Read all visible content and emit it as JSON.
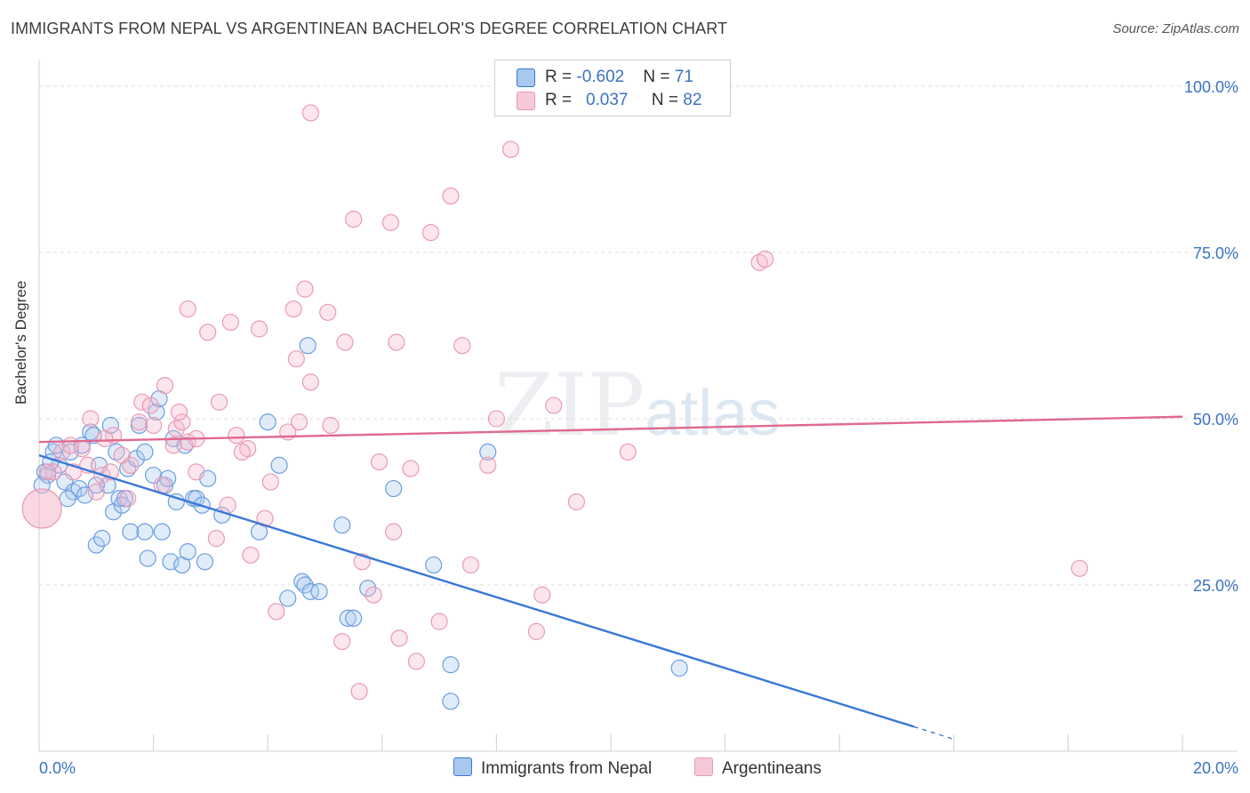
{
  "title": "IMMIGRANTS FROM NEPAL VS ARGENTINEAN BACHELOR'S DEGREE CORRELATION CHART",
  "source": "Source: ZipAtlas.com",
  "watermark": {
    "zip": "ZIP",
    "atlas": "atlas"
  },
  "legend": {
    "rows": [
      {
        "r_label": "R = ",
        "r_value": "-0.602",
        "n_label": "N = ",
        "n_value": "71",
        "color": "#a9c8ef"
      },
      {
        "r_label": "R = ",
        "r_value": "0.037",
        "n_label": "N = ",
        "n_value": "82",
        "color": "#f6b8cb"
      }
    ]
  },
  "bottom_legend": [
    "Immigrants from Nepal",
    "Argentineans"
  ],
  "chart_data": {
    "type": "scatter",
    "title": "IMMIGRANTS FROM NEPAL VS ARGENTINEAN BACHELOR'S DEGREE CORRELATION CHART",
    "xlabel": "",
    "ylabel": "Bachelor's Degree",
    "xlim": [
      0,
      20
    ],
    "ylim": [
      0,
      105
    ],
    "x_tick_labels": [
      "0.0%",
      "20.0%"
    ],
    "y_ticks": [
      25,
      50,
      75,
      100
    ],
    "y_tick_labels": [
      "25.0%",
      "50.0%",
      "75.0%",
      "100.0%"
    ],
    "grid": true,
    "series": [
      {
        "name": "Immigrants from Nepal",
        "color": "#3a78d6",
        "fill": "#a9c8ef",
        "trend": {
          "x": [
            0,
            15.3
          ],
          "y": [
            44.5,
            3.7
          ],
          "dashed_to": [
            16.0,
            1.8
          ]
        },
        "points": [
          [
            0.1,
            42
          ],
          [
            0.15,
            41.5
          ],
          [
            0.25,
            45
          ],
          [
            0.3,
            46
          ],
          [
            0.35,
            43
          ],
          [
            0.45,
            40.5
          ],
          [
            0.55,
            45
          ],
          [
            0.6,
            39
          ],
          [
            0.7,
            39.5
          ],
          [
            0.75,
            46
          ],
          [
            0.8,
            38.5
          ],
          [
            0.9,
            48
          ],
          [
            0.95,
            47.5
          ],
          [
            1.0,
            31
          ],
          [
            1.05,
            43
          ],
          [
            1.1,
            32
          ],
          [
            1.2,
            40
          ],
          [
            1.25,
            49
          ],
          [
            1.3,
            36
          ],
          [
            1.35,
            45
          ],
          [
            1.4,
            38
          ],
          [
            1.45,
            37
          ],
          [
            1.5,
            38
          ],
          [
            1.55,
            42.5
          ],
          [
            1.6,
            33
          ],
          [
            1.7,
            44
          ],
          [
            1.75,
            49
          ],
          [
            1.85,
            45
          ],
          [
            1.85,
            33
          ],
          [
            1.9,
            29
          ],
          [
            2.0,
            41.5
          ],
          [
            2.05,
            51
          ],
          [
            2.1,
            53
          ],
          [
            2.15,
            33
          ],
          [
            2.2,
            40
          ],
          [
            2.25,
            41
          ],
          [
            2.3,
            28.5
          ],
          [
            2.35,
            47
          ],
          [
            2.4,
            37.5
          ],
          [
            2.5,
            28
          ],
          [
            2.55,
            46
          ],
          [
            2.6,
            30
          ],
          [
            2.7,
            38
          ],
          [
            2.75,
            38
          ],
          [
            2.85,
            37
          ],
          [
            2.9,
            28.5
          ],
          [
            2.95,
            41
          ],
          [
            3.2,
            35.5
          ],
          [
            3.85,
            33
          ],
          [
            4.0,
            49.5
          ],
          [
            4.2,
            43
          ],
          [
            4.35,
            23
          ],
          [
            4.6,
            25.5
          ],
          [
            4.65,
            25
          ],
          [
            4.7,
            61
          ],
          [
            4.75,
            24
          ],
          [
            4.9,
            24
          ],
          [
            5.3,
            34
          ],
          [
            5.4,
            20
          ],
          [
            5.5,
            20
          ],
          [
            5.75,
            24.5
          ],
          [
            6.2,
            39.5
          ],
          [
            6.9,
            28
          ],
          [
            7.2,
            13
          ],
          [
            7.2,
            7.5
          ],
          [
            7.85,
            45
          ],
          [
            11.2,
            12.5
          ],
          [
            0.05,
            40
          ],
          [
            0.2,
            43.5
          ],
          [
            0.5,
            38
          ],
          [
            1.0,
            40
          ]
        ]
      },
      {
        "name": "Argentineans",
        "color": "#e0688f",
        "fill": "#f6b8cb",
        "trend": {
          "x": [
            0,
            20
          ],
          "y": [
            46.5,
            50.3
          ]
        },
        "points": [
          [
            0.05,
            36.5
          ],
          [
            0.25,
            42
          ],
          [
            0.4,
            45
          ],
          [
            0.6,
            42
          ],
          [
            0.75,
            45.5
          ],
          [
            0.9,
            50
          ],
          [
            1.0,
            39
          ],
          [
            1.1,
            41.5
          ],
          [
            1.25,
            42
          ],
          [
            1.3,
            47.5
          ],
          [
            1.45,
            44.5
          ],
          [
            1.6,
            43
          ],
          [
            1.75,
            49.5
          ],
          [
            1.8,
            52.5
          ],
          [
            1.95,
            52
          ],
          [
            2.0,
            49
          ],
          [
            2.15,
            40
          ],
          [
            2.2,
            55
          ],
          [
            2.4,
            48.5
          ],
          [
            2.5,
            49.5
          ],
          [
            2.45,
            51
          ],
          [
            2.6,
            46.5
          ],
          [
            2.75,
            47
          ],
          [
            2.75,
            42
          ],
          [
            2.6,
            66.5
          ],
          [
            2.95,
            63
          ],
          [
            3.15,
            52.5
          ],
          [
            3.1,
            32
          ],
          [
            3.3,
            37
          ],
          [
            3.35,
            64.5
          ],
          [
            3.45,
            47.5
          ],
          [
            3.65,
            45.5
          ],
          [
            3.7,
            29.5
          ],
          [
            3.85,
            63.5
          ],
          [
            3.95,
            35
          ],
          [
            4.05,
            40.5
          ],
          [
            4.15,
            21
          ],
          [
            4.35,
            48
          ],
          [
            4.45,
            66.5
          ],
          [
            4.5,
            59
          ],
          [
            4.55,
            49.5
          ],
          [
            4.65,
            69.5
          ],
          [
            4.75,
            55.5
          ],
          [
            4.75,
            96
          ],
          [
            5.05,
            66
          ],
          [
            5.1,
            49
          ],
          [
            5.3,
            16.5
          ],
          [
            5.35,
            61.5
          ],
          [
            5.5,
            80
          ],
          [
            5.6,
            9
          ],
          [
            5.65,
            28.5
          ],
          [
            5.85,
            23.5
          ],
          [
            5.95,
            43.5
          ],
          [
            6.15,
            79.5
          ],
          [
            6.2,
            33
          ],
          [
            6.25,
            61.5
          ],
          [
            6.3,
            17
          ],
          [
            6.5,
            42.5
          ],
          [
            6.6,
            13.5
          ],
          [
            6.85,
            78
          ],
          [
            7.0,
            19.5
          ],
          [
            7.2,
            83.5
          ],
          [
            7.4,
            61
          ],
          [
            7.55,
            28
          ],
          [
            7.85,
            43
          ],
          [
            8.0,
            50
          ],
          [
            8.25,
            90.5
          ],
          [
            8.7,
            18
          ],
          [
            8.8,
            23.5
          ],
          [
            9.0,
            52
          ],
          [
            9.4,
            37.5
          ],
          [
            10.3,
            45
          ],
          [
            12.6,
            73.5
          ],
          [
            12.7,
            74
          ],
          [
            18.2,
            27.5
          ],
          [
            0.15,
            42
          ],
          [
            0.55,
            46
          ],
          [
            0.85,
            43
          ],
          [
            1.15,
            47
          ],
          [
            1.55,
            38
          ],
          [
            2.35,
            46
          ],
          [
            3.55,
            45
          ]
        ]
      }
    ]
  }
}
